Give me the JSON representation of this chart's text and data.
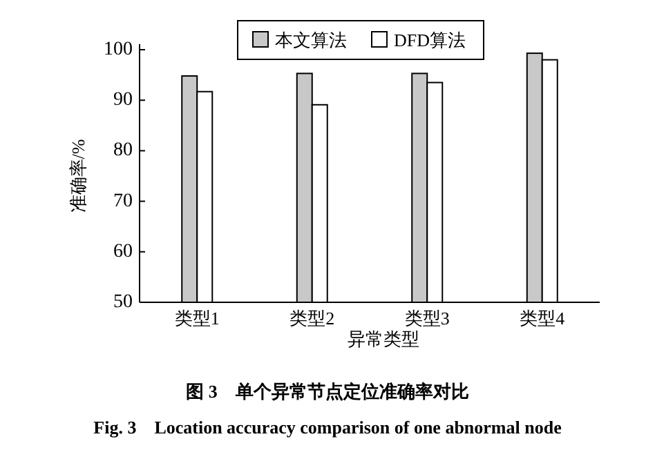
{
  "chart_data": {
    "type": "bar",
    "title": "图 3　单个异常节点定位准确率对比",
    "subtitle": "Fig. 3　Location accuracy comparison of one abnormal node",
    "xlabel": "异常类型",
    "ylabel": "准确率/%",
    "categories": [
      "类型1",
      "类型2",
      "类型3",
      "类型4"
    ],
    "series": [
      {
        "name": "本文算法",
        "color": "#c8c8c8",
        "values": [
          94.8,
          95.3,
          95.3,
          99.3
        ]
      },
      {
        "name": "DFD算法",
        "color": "#ffffff",
        "values": [
          91.7,
          89.1,
          93.5,
          98.0
        ]
      }
    ],
    "ylim": [
      50,
      100
    ],
    "yticks": [
      50,
      60,
      70,
      80,
      90,
      100
    ],
    "legend": "top"
  }
}
